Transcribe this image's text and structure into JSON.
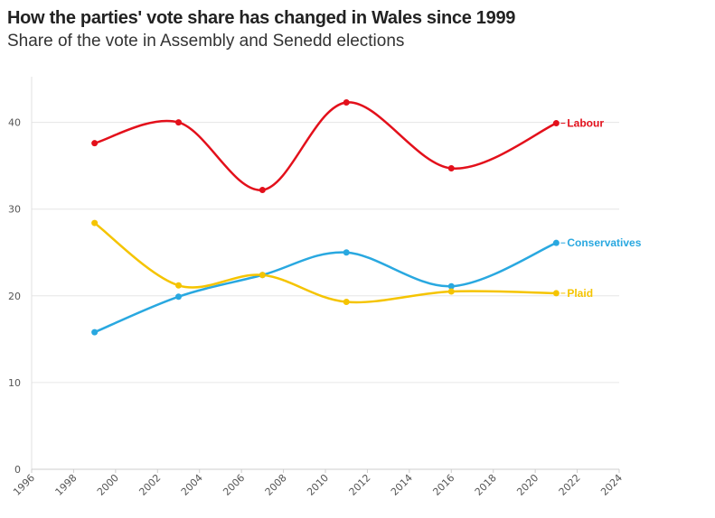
{
  "title": "How the parties' vote share has changed in Wales since 1999",
  "subtitle": "Share of the vote in Assembly and Senedd elections",
  "chart_data": {
    "type": "line",
    "title": "How the parties' vote share has changed in Wales since 1999",
    "subtitle": "Share of the vote in Assembly and Senedd elections",
    "xlabel": "",
    "ylabel": "",
    "xlim": [
      1996,
      2024
    ],
    "ylim": [
      0,
      45
    ],
    "x_ticks": [
      1996,
      1998,
      2000,
      2002,
      2004,
      2006,
      2008,
      2010,
      2012,
      2014,
      2016,
      2018,
      2020,
      2022,
      2024
    ],
    "y_ticks": [
      0,
      10,
      20,
      30,
      40
    ],
    "grid": "horizontal",
    "legend": "direct labels at line ends",
    "x": [
      1999,
      2003,
      2007,
      2011,
      2016,
      2021
    ],
    "series": [
      {
        "name": "Labour",
        "color": "#e3101b",
        "values": [
          37.6,
          40.0,
          32.2,
          42.3,
          34.7,
          39.9
        ]
      },
      {
        "name": "Conservatives",
        "color": "#29a8e0",
        "values": [
          15.8,
          19.9,
          22.4,
          25.0,
          21.1,
          26.1
        ]
      },
      {
        "name": "Plaid",
        "color": "#f5c400",
        "values": [
          28.4,
          21.2,
          22.4,
          19.3,
          20.5,
          20.3
        ]
      }
    ]
  }
}
